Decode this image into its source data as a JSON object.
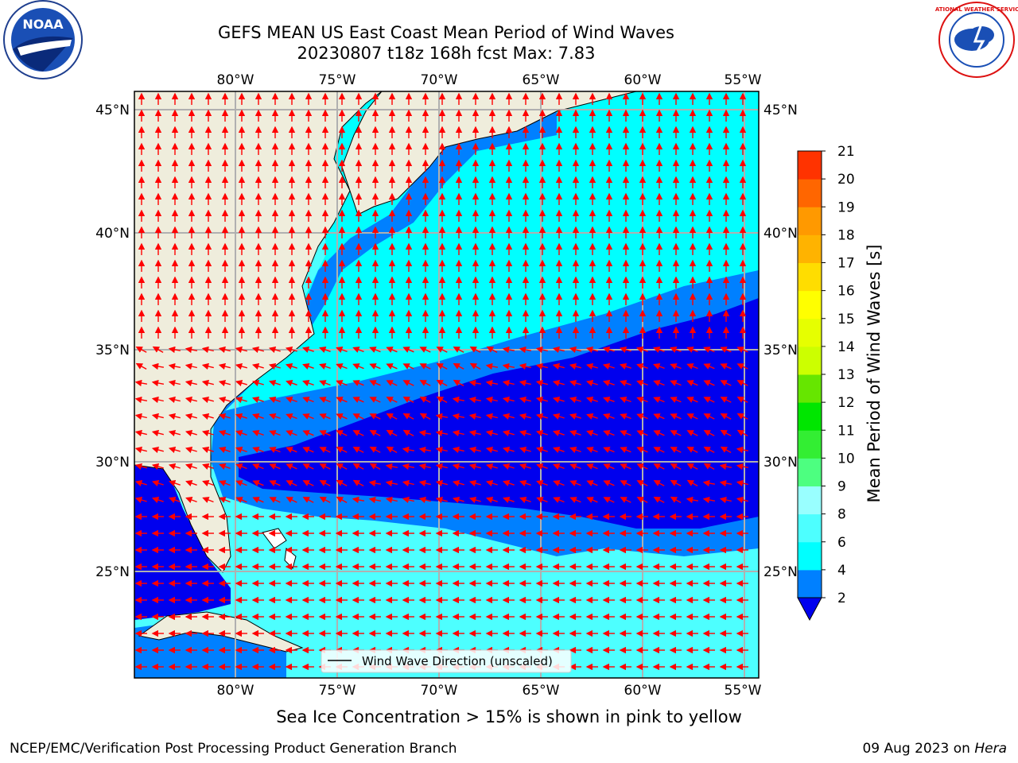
{
  "header": {
    "title_line1": "GEFS MEAN US East Coast Mean Period of Wind Waves",
    "title_line2": "20230807 t18z 168h fcst   Max: 7.83"
  },
  "logos": {
    "left": "noaa-logo",
    "right": "national-weather-service-logo",
    "left_text": "NOAA",
    "right_text": "NATIONAL WEATHER SERVICE"
  },
  "map": {
    "lon_ticks": [
      "80°W",
      "75°W",
      "70°W",
      "65°W",
      "60°W",
      "55°W"
    ],
    "lat_ticks": [
      "45°N",
      "40°N",
      "35°N",
      "30°N",
      "25°N"
    ],
    "legend_label": "Wind Wave Direction (unscaled)",
    "colors": {
      "land": "#efeddc",
      "cyan": "#00ffff",
      "light_cyan": "#4dffff",
      "blue": "#0080ff",
      "dark_blue": "#0000ee",
      "arrow": "#ff0000",
      "grid": "#b0b0b0"
    }
  },
  "colorbar": {
    "label": "Mean Period of Wind Waves [s]",
    "ticks": [
      "2",
      "4",
      "6",
      "8",
      "9",
      "10",
      "11",
      "12",
      "13",
      "14",
      "15",
      "16",
      "17",
      "18",
      "19",
      "20",
      "21"
    ],
    "colors": [
      "#0080ff",
      "#00ffff",
      "#4dffff",
      "#99ffff",
      "#4dff80",
      "#33ee33",
      "#00e600",
      "#66e600",
      "#ccff00",
      "#e6ff00",
      "#ffff00",
      "#ffdd00",
      "#ffb300",
      "#ff9900",
      "#ff6600",
      "#ff3300",
      "#ff0000"
    ],
    "under_color": "#0000ee"
  },
  "notes": {
    "sea_ice": "Sea Ice Concentration > 15% is shown in pink to yellow",
    "producer": "NCEP/EMC/Verification Post Processing Product Generation Branch",
    "date": "09 Aug 2023 on",
    "machine": "Hera"
  }
}
